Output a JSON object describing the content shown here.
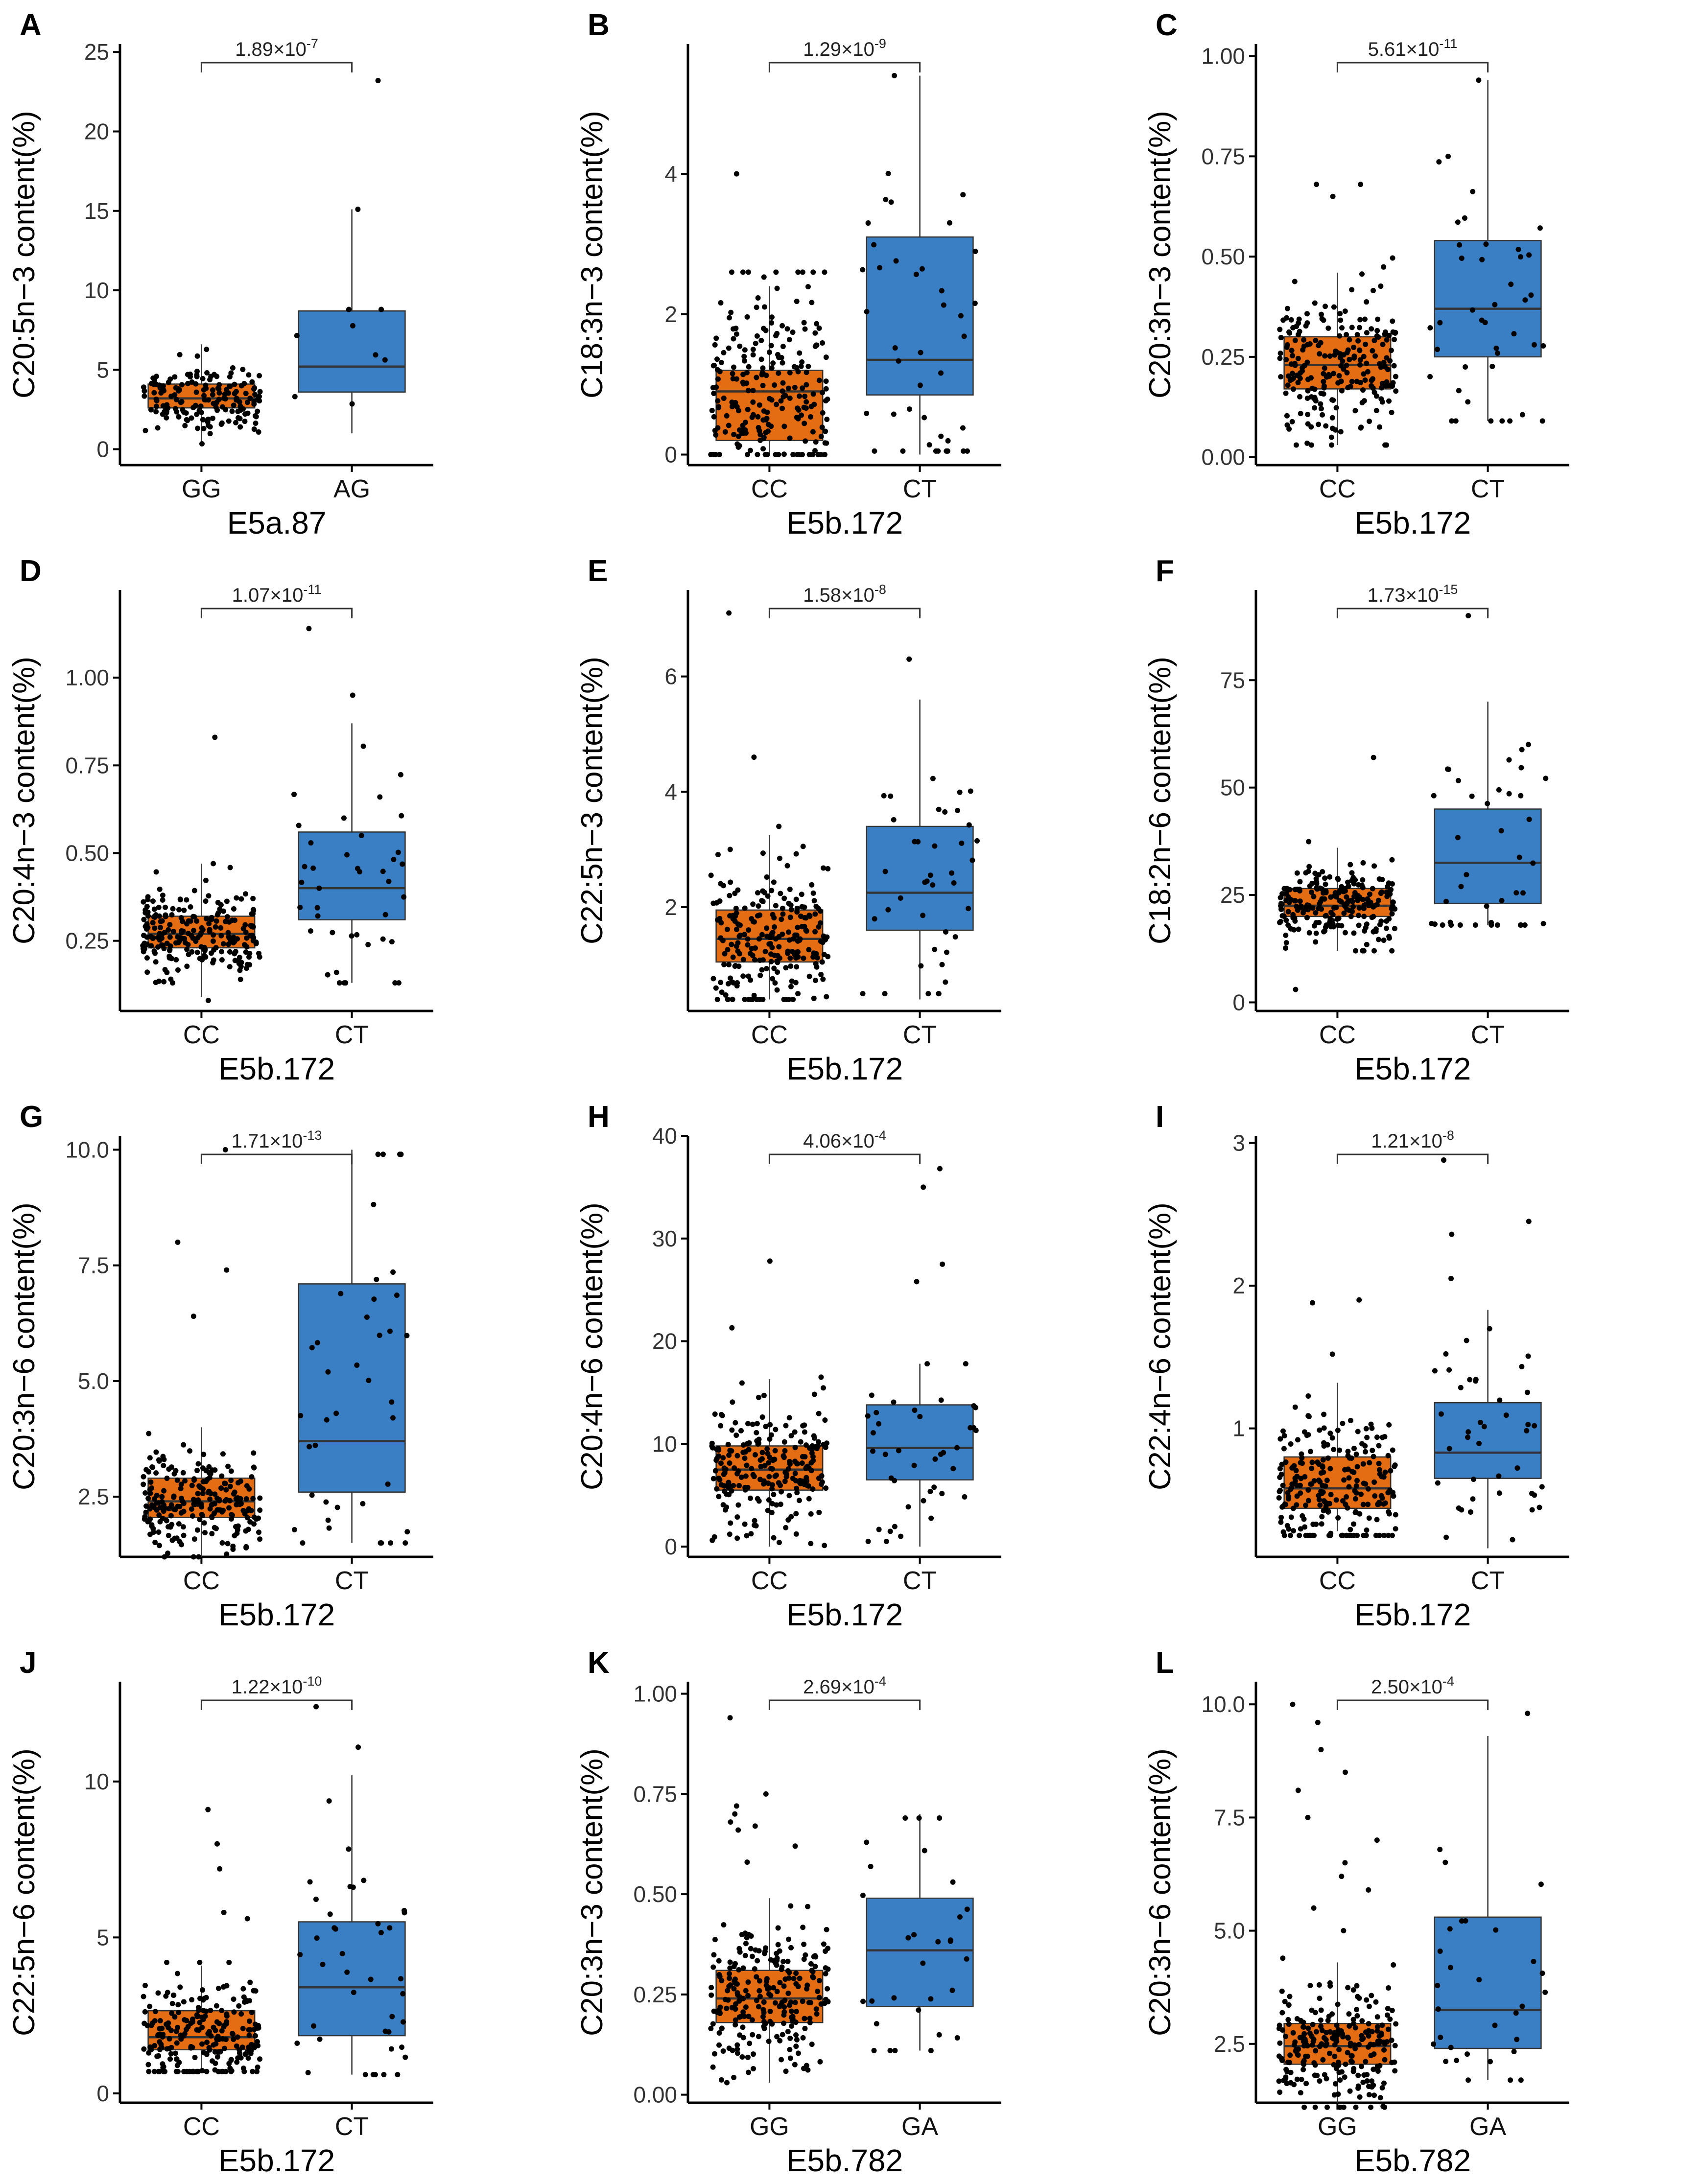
{
  "figure": {
    "colors": {
      "group1": "#e46c12",
      "group2": "#3a7fc4",
      "points": "#000000"
    }
  },
  "chart_data": [
    {
      "panel": "A",
      "type": "box",
      "ylabel": "C20:5n−3 content(%)",
      "xlabel": "E5a.87",
      "categories": [
        "GG",
        "AG"
      ],
      "ylim": [
        -1,
        25.5
      ],
      "yticks": [
        0,
        5,
        10,
        15,
        20,
        25
      ],
      "ytick_labels": [
        "0",
        "5",
        "10",
        "15",
        "20",
        "25"
      ],
      "pvalue": {
        "mantissa": "1.89",
        "exponent": "-7"
      },
      "boxes": [
        {
          "q1": 2.6,
          "median": 3.2,
          "q3": 4.1,
          "whisker_low": 0.5,
          "whisker_high": 6.6,
          "n_points": 170,
          "point_min": 0.3,
          "point_max": 7.9,
          "outliers": []
        },
        {
          "q1": 3.6,
          "median": 5.2,
          "q3": 8.7,
          "whisker_low": 1.0,
          "whisker_high": 15.1,
          "n_points": 8,
          "point_min": 1.0,
          "point_max": 8.8,
          "outliers": [
            15.1,
            23.2
          ]
        }
      ]
    },
    {
      "panel": "B",
      "type": "box",
      "ylabel": "C18:3n−3 content(%)",
      "xlabel": "E5b.172",
      "categories": [
        "CC",
        "CT"
      ],
      "ylim": [
        -0.15,
        5.85
      ],
      "yticks": [
        0,
        2,
        4
      ],
      "ytick_labels": [
        "0",
        "2",
        "4"
      ],
      "pvalue": {
        "mantissa": "1.29",
        "exponent": "-9"
      },
      "boxes": [
        {
          "q1": 0.2,
          "median": 0.9,
          "q3": 1.2,
          "whisker_low": 0.0,
          "whisker_high": 2.4,
          "n_points": 230,
          "point_min": 0.0,
          "point_max": 2.6,
          "outliers": [
            4.0
          ]
        },
        {
          "q1": 0.85,
          "median": 1.35,
          "q3": 3.1,
          "whisker_low": 0.0,
          "whisker_high": 5.4,
          "n_points": 40,
          "point_min": 0.05,
          "point_max": 4.6,
          "outliers": [
            5.4
          ]
        }
      ]
    },
    {
      "panel": "C",
      "type": "box",
      "ylabel": "C20:3n−3 content(%)",
      "xlabel": "E5b.172",
      "categories": [
        "CC",
        "CT"
      ],
      "ylim": [
        -0.02,
        1.03
      ],
      "yticks": [
        0,
        0.25,
        0.5,
        0.75,
        1.0
      ],
      "ytick_labels": [
        "0.00",
        "0.25",
        "0.50",
        "0.75",
        "1.00"
      ],
      "pvalue": {
        "mantissa": "5.61",
        "exponent": "-11"
      },
      "boxes": [
        {
          "q1": 0.17,
          "median": 0.23,
          "q3": 0.3,
          "whisker_low": 0.03,
          "whisker_high": 0.46,
          "n_points": 230,
          "point_min": 0.03,
          "point_max": 0.53,
          "outliers": [
            0.65,
            0.68,
            0.68
          ]
        },
        {
          "q1": 0.25,
          "median": 0.37,
          "q3": 0.54,
          "whisker_low": 0.09,
          "whisker_high": 0.94,
          "n_points": 40,
          "point_min": 0.09,
          "point_max": 0.75,
          "outliers": [
            0.94
          ]
        }
      ]
    },
    {
      "panel": "D",
      "type": "box",
      "ylabel": "C20:4n−3 content(%)",
      "xlabel": "E5b.172",
      "categories": [
        "CC",
        "CT"
      ],
      "ylim": [
        0.05,
        1.25
      ],
      "yticks": [
        0.25,
        0.5,
        0.75,
        1.0
      ],
      "ytick_labels": [
        "0.25",
        "0.50",
        "0.75",
        "1.00"
      ],
      "pvalue": {
        "mantissa": "1.07",
        "exponent": "-11"
      },
      "boxes": [
        {
          "q1": 0.23,
          "median": 0.27,
          "q3": 0.32,
          "whisker_low": 0.09,
          "whisker_high": 0.47,
          "n_points": 230,
          "point_min": 0.08,
          "point_max": 0.66,
          "outliers": [
            0.83
          ]
        },
        {
          "q1": 0.31,
          "median": 0.4,
          "q3": 0.56,
          "whisker_low": 0.13,
          "whisker_high": 0.87,
          "n_points": 40,
          "point_min": 0.13,
          "point_max": 0.87,
          "outliers": [
            0.95,
            1.14
          ]
        }
      ]
    },
    {
      "panel": "E",
      "type": "box",
      "ylabel": "C22:5n−3 content(%)",
      "xlabel": "E5b.172",
      "categories": [
        "CC",
        "CT"
      ],
      "ylim": [
        0.2,
        7.5
      ],
      "yticks": [
        2,
        4,
        6
      ],
      "ytick_labels": [
        "2",
        "4",
        "6"
      ],
      "pvalue": {
        "mantissa": "1.58",
        "exponent": "-8"
      },
      "boxes": [
        {
          "q1": 1.05,
          "median": 1.45,
          "q3": 1.95,
          "whisker_low": 0.4,
          "whisker_high": 3.25,
          "n_points": 230,
          "point_min": 0.4,
          "point_max": 3.4,
          "outliers": [
            4.6,
            7.1
          ]
        },
        {
          "q1": 1.6,
          "median": 2.25,
          "q3": 3.4,
          "whisker_low": 0.4,
          "whisker_high": 5.6,
          "n_points": 40,
          "point_min": 0.5,
          "point_max": 5.6,
          "outliers": [
            6.3
          ]
        }
      ]
    },
    {
      "panel": "F",
      "type": "box",
      "ylabel": "C18:2n−6 content(%)",
      "xlabel": "E5b.172",
      "categories": [
        "CC",
        "CT"
      ],
      "ylim": [
        -2,
        96
      ],
      "yticks": [
        0,
        25,
        50,
        75
      ],
      "ytick_labels": [
        "0",
        "25",
        "50",
        "75"
      ],
      "pvalue": {
        "mantissa": "1.73",
        "exponent": "-15"
      },
      "boxes": [
        {
          "q1": 20,
          "median": 22.5,
          "q3": 26.5,
          "whisker_low": 12,
          "whisker_high": 36,
          "n_points": 230,
          "point_min": 12,
          "point_max": 38,
          "outliers": [
            3,
            57
          ]
        },
        {
          "q1": 23,
          "median": 32.5,
          "q3": 45,
          "whisker_low": 18,
          "whisker_high": 70,
          "n_points": 40,
          "point_min": 18,
          "point_max": 64,
          "outliers": [
            90
          ]
        }
      ]
    },
    {
      "panel": "G",
      "type": "box",
      "ylabel": "C20:3n−6 content(%)",
      "xlabel": "E5b.172",
      "categories": [
        "CC",
        "CT"
      ],
      "ylim": [
        1.2,
        10.3
      ],
      "yticks": [
        2.5,
        5.0,
        7.5,
        10.0
      ],
      "ytick_labels": [
        "2.5",
        "5.0",
        "7.5",
        "10.0"
      ],
      "pvalue": {
        "mantissa": "1.71",
        "exponent": "-13"
      },
      "boxes": [
        {
          "q1": 2.05,
          "median": 2.4,
          "q3": 2.9,
          "whisker_low": 1.2,
          "whisker_high": 4.0,
          "n_points": 230,
          "point_min": 1.2,
          "point_max": 5.3,
          "outliers": [
            6.4,
            7.4,
            8.0,
            10.0
          ]
        },
        {
          "q1": 2.6,
          "median": 3.7,
          "q3": 7.1,
          "whisker_low": 1.5,
          "whisker_high": 10.0,
          "n_points": 40,
          "point_min": 1.5,
          "point_max": 9.9,
          "outliers": []
        }
      ]
    },
    {
      "panel": "H",
      "type": "box",
      "ylabel": "C20:4n−6 content(%)",
      "xlabel": "E5b.172",
      "categories": [
        "CC",
        "CT"
      ],
      "ylim": [
        -1,
        40
      ],
      "yticks": [
        0,
        10,
        20,
        30,
        40
      ],
      "ytick_labels": [
        "0",
        "10",
        "20",
        "30",
        "40"
      ],
      "pvalue": {
        "mantissa": "4.06",
        "exponent": "-4"
      },
      "boxes": [
        {
          "q1": 5.5,
          "median": 7.5,
          "q3": 9.8,
          "whisker_low": 0.0,
          "whisker_high": 16.3,
          "n_points": 230,
          "point_min": 0.0,
          "point_max": 16.5,
          "outliers": [
            21.3,
            27.8
          ]
        },
        {
          "q1": 6.5,
          "median": 9.6,
          "q3": 13.8,
          "whisker_low": 0.0,
          "whisker_high": 17.8,
          "n_points": 40,
          "point_min": 0.5,
          "point_max": 17.8,
          "outliers": [
            25.8,
            27.5,
            35.0,
            36.8
          ]
        }
      ]
    },
    {
      "panel": "I",
      "type": "box",
      "ylabel": "C22:4n−6 content(%)",
      "xlabel": "E5b.172",
      "categories": [
        "CC",
        "CT"
      ],
      "ylim": [
        0.1,
        3.05
      ],
      "yticks": [
        1,
        2,
        3
      ],
      "ytick_labels": [
        "1",
        "2",
        "3"
      ],
      "pvalue": {
        "mantissa": "1.21",
        "exponent": "-8"
      },
      "boxes": [
        {
          "q1": 0.44,
          "median": 0.58,
          "q3": 0.8,
          "whisker_low": 0.28,
          "whisker_high": 1.32,
          "n_points": 230,
          "point_min": 0.25,
          "point_max": 1.35,
          "outliers": [
            1.52,
            1.88,
            1.9
          ]
        },
        {
          "q1": 0.65,
          "median": 0.83,
          "q3": 1.18,
          "whisker_low": 0.16,
          "whisker_high": 1.83,
          "n_points": 40,
          "point_min": 0.22,
          "point_max": 1.83,
          "outliers": [
            2.05,
            2.36,
            2.45,
            2.88
          ]
        }
      ]
    },
    {
      "panel": "J",
      "type": "box",
      "ylabel": "C22:5n−6 content(%)",
      "xlabel": "E5b.172",
      "categories": [
        "CC",
        "CT"
      ],
      "ylim": [
        -0.3,
        13.2
      ],
      "yticks": [
        0,
        5,
        10
      ],
      "ytick_labels": [
        "0",
        "5",
        "10"
      ],
      "pvalue": {
        "mantissa": "1.22",
        "exponent": "-10"
      },
      "boxes": [
        {
          "q1": 1.4,
          "median": 1.8,
          "q3": 2.65,
          "whisker_low": 0.7,
          "whisker_high": 4.1,
          "n_points": 230,
          "point_min": 0.7,
          "point_max": 4.2,
          "outliers": [
            5.6,
            5.8,
            7.2,
            8.0,
            9.1
          ]
        },
        {
          "q1": 1.85,
          "median": 3.4,
          "q3": 5.5,
          "whisker_low": 0.6,
          "whisker_high": 10.2,
          "n_points": 40,
          "point_min": 0.6,
          "point_max": 10.2,
          "outliers": [
            11.1,
            12.4
          ]
        }
      ]
    },
    {
      "panel": "K",
      "type": "box",
      "ylabel": "C20:3n−3 content(%)",
      "xlabel": "E5b.782",
      "categories": [
        "GG",
        "GA"
      ],
      "ylim": [
        -0.02,
        1.03
      ],
      "yticks": [
        0,
        0.25,
        0.5,
        0.75,
        1.0
      ],
      "ytick_labels": [
        "0.00",
        "0.25",
        "0.50",
        "0.75",
        "1.00"
      ],
      "pvalue": {
        "mantissa": "2.69",
        "exponent": "-4"
      },
      "boxes": [
        {
          "q1": 0.18,
          "median": 0.24,
          "q3": 0.31,
          "whisker_low": 0.03,
          "whisker_high": 0.49,
          "n_points": 240,
          "point_min": 0.03,
          "point_max": 0.56,
          "outliers": [
            0.58,
            0.62,
            0.66,
            0.67,
            0.68,
            0.7,
            0.72,
            0.75,
            0.94
          ]
        },
        {
          "q1": 0.22,
          "median": 0.36,
          "q3": 0.49,
          "whisker_low": 0.11,
          "whisker_high": 0.7,
          "n_points": 30,
          "point_min": 0.11,
          "point_max": 0.69,
          "outliers": []
        }
      ]
    },
    {
      "panel": "L",
      "type": "box",
      "ylabel": "C20:3n−6 content(%)",
      "xlabel": "E5b.782",
      "categories": [
        "GG",
        "GA"
      ],
      "ylim": [
        1.2,
        10.5
      ],
      "yticks": [
        2.5,
        5.0,
        7.5,
        10.0
      ],
      "ytick_labels": [
        "2.5",
        "5.0",
        "7.5",
        "10.0"
      ],
      "pvalue": {
        "mantissa": "2.50",
        "exponent": "-4"
      },
      "boxes": [
        {
          "q1": 2.05,
          "median": 2.45,
          "q3": 2.95,
          "whisker_low": 1.2,
          "whisker_high": 4.3,
          "n_points": 240,
          "point_min": 1.1,
          "point_max": 4.4,
          "outliers": [
            5.0,
            5.5,
            5.9,
            6.2,
            6.5,
            7.0,
            7.5,
            8.1,
            8.5,
            9.0,
            9.6,
            10.0
          ]
        },
        {
          "q1": 2.4,
          "median": 3.25,
          "q3": 5.3,
          "whisker_low": 1.7,
          "whisker_high": 9.3,
          "n_points": 30,
          "point_min": 1.7,
          "point_max": 9.3,
          "outliers": [
            9.8
          ]
        }
      ]
    }
  ]
}
